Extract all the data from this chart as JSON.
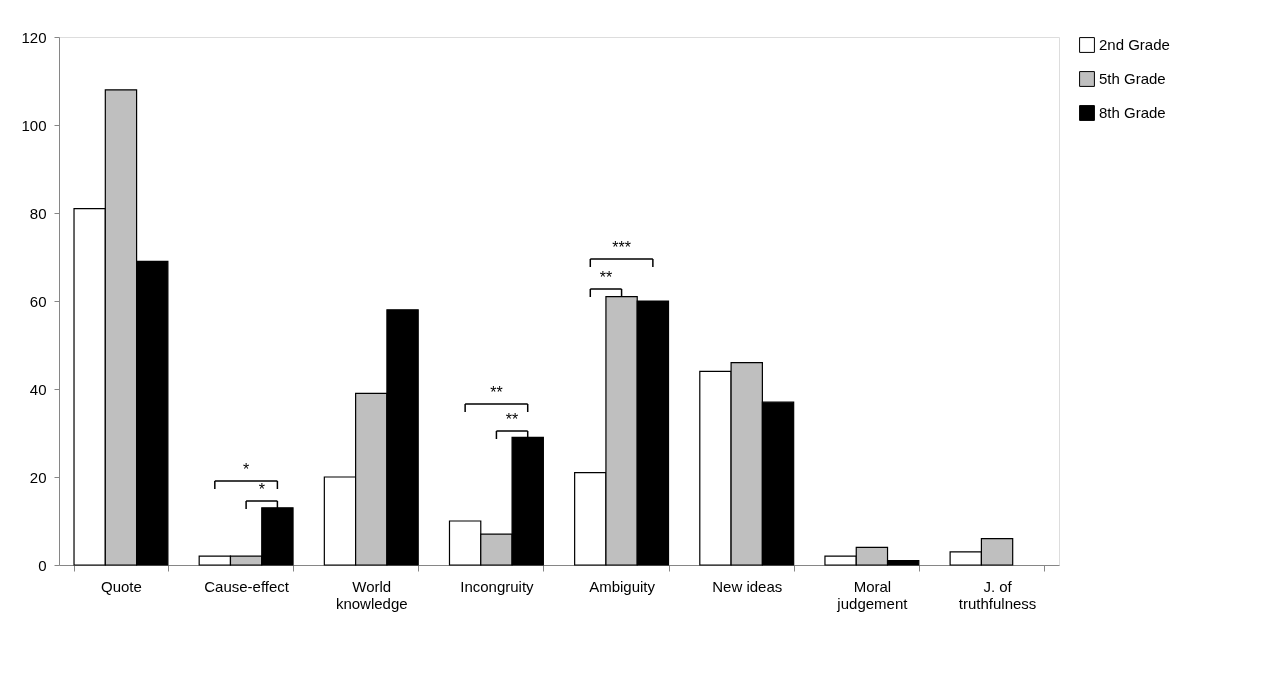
{
  "chart_data": {
    "type": "bar",
    "categories": [
      "Quote",
      "Cause-effect",
      "World knowledge",
      "Incongruity",
      "Ambiguity",
      "New ideas",
      "Moral judgement",
      "J. of truthfulness"
    ],
    "series": [
      {
        "name": "2nd Grade",
        "color": "#ffffff",
        "values": [
          81,
          2,
          20,
          10,
          21,
          44,
          2,
          3
        ]
      },
      {
        "name": "5th Grade",
        "color": "#bfbfbf",
        "values": [
          108,
          2,
          39,
          7,
          61,
          46,
          4,
          6
        ]
      },
      {
        "name": "8th Grade",
        "color": "#000000",
        "values": [
          69,
          13,
          58,
          29,
          60,
          37,
          1,
          null
        ]
      }
    ],
    "ylim": [
      0,
      120
    ],
    "yticks": [
      0,
      20,
      40,
      60,
      80,
      100,
      120
    ],
    "grid": false,
    "legend": "right",
    "annotations": [
      "*",
      "*",
      "**",
      "**",
      "**",
      "***"
    ]
  }
}
